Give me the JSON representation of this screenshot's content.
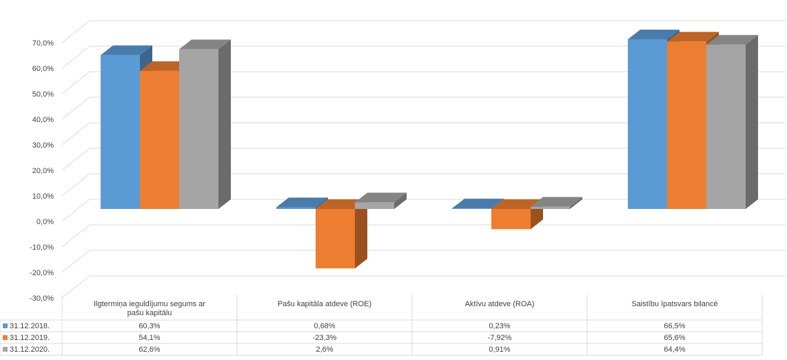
{
  "chart_data": {
    "type": "bar",
    "style": "3d-clustered-column-with-data-table",
    "categories": [
      "Ilgtermiņa ieguldījumu segums ar pašu kapitālu",
      "Pašu kapitāla atdeve (ROE)",
      "Aktīvu atdeve (ROA)",
      "Saistību īpatsvars bilancē"
    ],
    "series": [
      {
        "name": "31.12.2018.",
        "color": "#5b9bd5",
        "values": [
          60.3,
          0.68,
          0.23,
          66.5
        ],
        "labels": [
          "60,3%",
          "0,68%",
          "0,23%",
          "66,5%"
        ]
      },
      {
        "name": "31.12.2019.",
        "color": "#ed7d31",
        "values": [
          54.1,
          -23.3,
          -7.92,
          65.6
        ],
        "labels": [
          "54,1%",
          "-23,3%",
          "-7,92%",
          "65,6%"
        ]
      },
      {
        "name": "31.12.2020.",
        "color": "#a5a5a5",
        "values": [
          62.6,
          2.6,
          0.91,
          64.4
        ],
        "labels": [
          "62,6%",
          "2,6%",
          "0,91%",
          "64,4%"
        ]
      }
    ],
    "y_ticks": [
      "-30,0%",
      "-20,0%",
      "-10,0%",
      "0,0%",
      "10,0%",
      "20,0%",
      "30,0%",
      "40,0%",
      "50,0%",
      "60,0%",
      "70,0%"
    ],
    "ylim": [
      -30,
      70
    ],
    "grid": true,
    "legend": "data-table-left"
  }
}
